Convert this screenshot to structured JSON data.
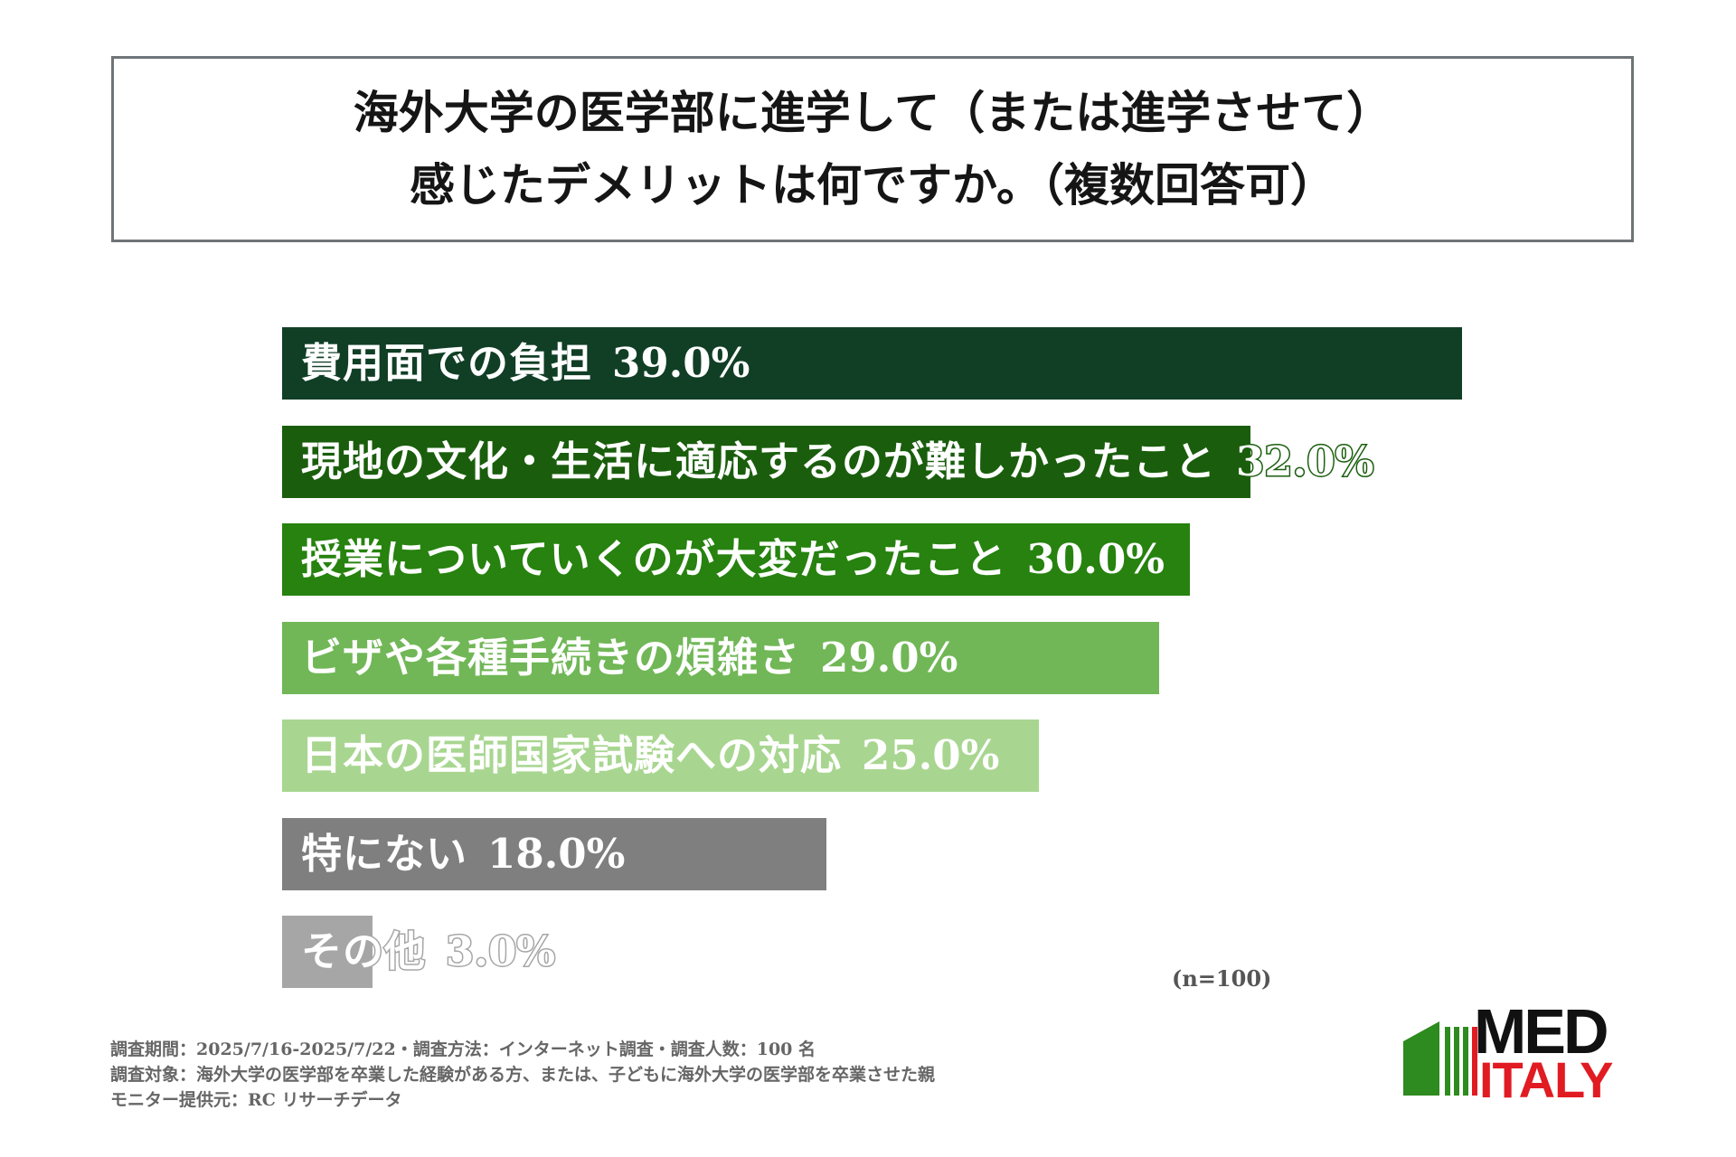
{
  "title": {
    "line1": "海外大学の医学部に進学して（または進学させて）",
    "line2": "感じたデメリットは何ですか。（複数回答可）"
  },
  "chart_data": {
    "type": "bar",
    "orientation": "horizontal",
    "categories": [
      "費用面での負担",
      "現地の文化・生活に適応するのが難しかったこと",
      "授業についていくのが大変だったこと",
      "ビザや各種手続きの煩雑さ",
      "日本の医師国家試験への対応",
      "特にない",
      "その他"
    ],
    "values": [
      39.0,
      32.0,
      30.0,
      29.0,
      25.0,
      18.0,
      3.0
    ],
    "value_labels": [
      "39.0%",
      "32.0%",
      "30.0%",
      "29.0%",
      "25.0%",
      "18.0%",
      "3.0%"
    ],
    "colors": [
      "#113f26",
      "#1a5e0d",
      "#27820f",
      "#71b757",
      "#a8d690",
      "#7f7f7f",
      "#a6a6a6"
    ],
    "unit": "%",
    "xlim": [
      0,
      39
    ]
  },
  "sample_note": "(n=100)",
  "footnotes": [
    "調査期間：2025/7/16-2025/7/22・調査方法：インターネット調査・調査人数：100 名",
    "調査対象：海外大学の医学部を卒業した経験がある方、または、子どもに海外大学の医学部を卒業させた親",
    "モニター提供元：RC リサーチデータ"
  ],
  "logo": {
    "top_text": "MED",
    "bottom_text": "ITALY",
    "green": "#2e8b1f",
    "red": "#e11b22"
  }
}
